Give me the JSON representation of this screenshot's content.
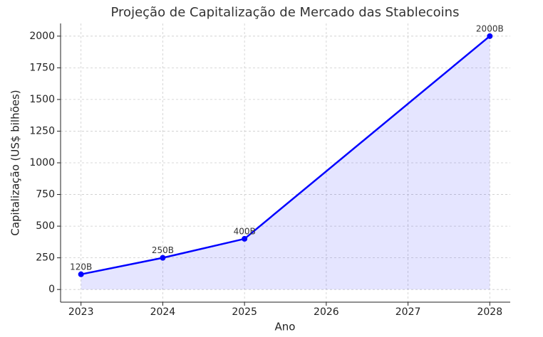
{
  "chart_data": {
    "type": "area-line",
    "title": "Projeção de Capitalização de Mercado das Stablecoins",
    "xlabel": "Ano",
    "ylabel": "Capitalização (US$ bilhões)",
    "x": [
      2023,
      2024,
      2025,
      2028
    ],
    "values": [
      120,
      250,
      400,
      2000
    ],
    "value_labels": [
      "120B",
      "250B",
      "400B",
      "2000B"
    ],
    "color": "#0000ff",
    "xlim": [
      2022.75,
      2028.25
    ],
    "xticks": [
      2023,
      2024,
      2025,
      2026,
      2027,
      2028
    ],
    "ylim": [
      -100,
      2100
    ],
    "yticks": [
      0,
      250,
      500,
      750,
      1000,
      1250,
      1500,
      1750,
      2000
    ],
    "grid": true
  }
}
